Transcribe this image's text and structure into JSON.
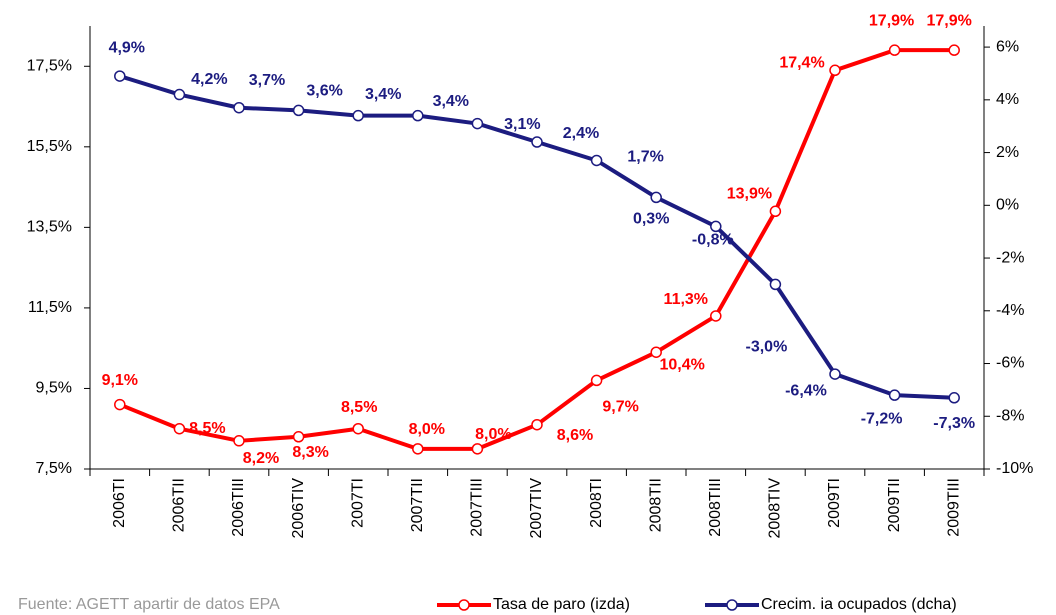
{
  "chart_data": {
    "type": "line",
    "source": "Fuente: AGETT apartir de datos EPA",
    "categories": [
      "2006TI",
      "2006TII",
      "2006TIII",
      "2006TIV",
      "2007TI",
      "2007TII",
      "2007TIII",
      "2007TIV",
      "2008TI",
      "2008TII",
      "2008TIII",
      "2008TIV",
      "2009TI",
      "2009TII",
      "2009TIII"
    ],
    "series": [
      {
        "name": "Tasa de paro (izda)",
        "color": "#ff0000",
        "values": [
          9.1,
          8.5,
          8.2,
          8.3,
          8.5,
          8.0,
          8.0,
          8.6,
          9.7,
          10.4,
          11.3,
          13.9,
          17.4,
          17.9,
          17.9
        ],
        "value_labels": [
          "9,1%",
          "8,5%",
          "8,2%",
          "8,3%",
          "8,5%",
          "8,0%",
          "8,0%",
          "8,6%",
          "9,7%",
          "10,4%",
          "11,3%",
          "13,9%",
          "17,4%",
          "17,9%",
          "17,9%"
        ]
      },
      {
        "name": "Crecim. ia ocupados (dcha)",
        "color": "#1c1c80",
        "axis": "y2",
        "values": [
          4.9,
          4.2,
          3.7,
          3.6,
          3.4,
          3.4,
          3.1,
          2.4,
          1.7,
          0.3,
          -0.8,
          -3.0,
          -6.4,
          -7.2,
          -7.3
        ],
        "value_labels": [
          "4,9%",
          "4,2%",
          "3,7%",
          "3,6%",
          "3,4%",
          "3,4%",
          "3,1%",
          "2,4%",
          "1,7%",
          "0,3%",
          "-0,8%",
          "-3,0%",
          "-6,4%",
          "-7,2%",
          "-7,3%"
        ]
      }
    ],
    "ylim": [
      7.5,
      18.5
    ],
    "yticks": [
      {
        "value": 7.5,
        "label": "7,5%"
      },
      {
        "value": 9.5,
        "label": "9,5%"
      },
      {
        "value": 11.5,
        "label": "11,5%"
      },
      {
        "value": 13.5,
        "label": "13,5%"
      },
      {
        "value": 15.5,
        "label": "15,5%"
      },
      {
        "value": 17.5,
        "label": "17,5%"
      }
    ],
    "y2lim": [
      -10,
      6.8
    ],
    "y2ticks": [
      {
        "value": -10,
        "label": "-10%"
      },
      {
        "value": -8,
        "label": "-8%"
      },
      {
        "value": -6,
        "label": "-6%"
      },
      {
        "value": -4,
        "label": "-4%"
      },
      {
        "value": -2,
        "label": "-2%"
      },
      {
        "value": 0,
        "label": "0%"
      },
      {
        "value": 2,
        "label": "2%"
      },
      {
        "value": 4,
        "label": "4%"
      },
      {
        "value": 6,
        "label": "6%"
      }
    ],
    "grid": false,
    "legend": "bottom"
  }
}
